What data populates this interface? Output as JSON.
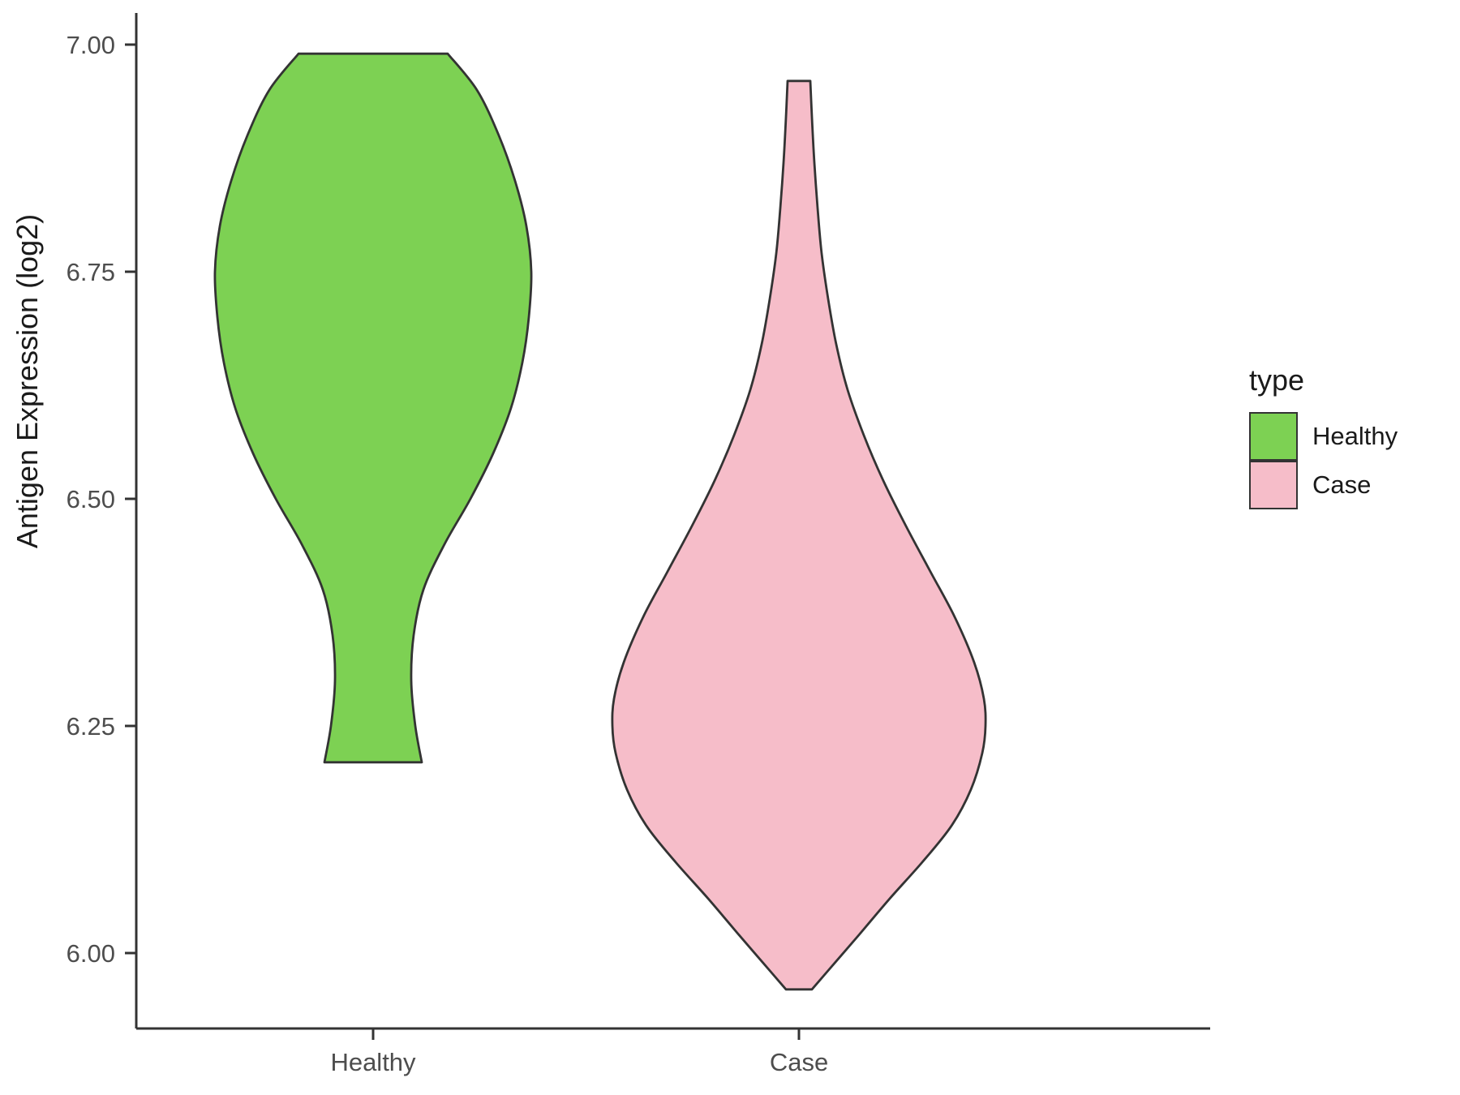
{
  "chart_data": {
    "type": "violin",
    "title": "",
    "xlabel": "",
    "ylabel": "Antigen Expression (log2)",
    "categories": [
      "Healthy",
      "Case"
    ],
    "y_ticks": [
      {
        "label": "7.00",
        "value": 7.0
      },
      {
        "label": "6.75",
        "value": 6.75
      },
      {
        "label": "6.50",
        "value": 6.5
      },
      {
        "label": "6.25",
        "value": 6.25
      },
      {
        "label": "6.00",
        "value": 6.0
      }
    ],
    "ylim": [
      5.9,
      7.02
    ],
    "grid": false,
    "legend_position": "right",
    "legend": {
      "title": "type",
      "entries": [
        {
          "label": "Healthy",
          "color": "#7DD153"
        },
        {
          "label": "Case",
          "color": "#F6BDC9"
        }
      ]
    },
    "series": [
      {
        "name": "Healthy",
        "fill": "#7DD153",
        "outline": "#333333",
        "value_range": [
          6.21,
          6.99
        ],
        "peak_density_at": 6.75,
        "density_profile": [
          [
            6.99,
            92
          ],
          [
            6.95,
            128
          ],
          [
            6.9,
            155
          ],
          [
            6.85,
            175
          ],
          [
            6.8,
            189
          ],
          [
            6.75,
            195
          ],
          [
            6.7,
            192
          ],
          [
            6.65,
            184
          ],
          [
            6.6,
            170
          ],
          [
            6.55,
            148
          ],
          [
            6.5,
            120
          ],
          [
            6.45,
            88
          ],
          [
            6.4,
            62
          ],
          [
            6.35,
            50
          ],
          [
            6.3,
            47
          ],
          [
            6.25,
            52
          ],
          [
            6.21,
            60
          ]
        ]
      },
      {
        "name": "Case",
        "fill": "#F6BDC9",
        "outline": "#333333",
        "value_range": [
          5.96,
          6.96
        ],
        "peak_density_at": 6.27,
        "density_profile": [
          [
            6.96,
            14
          ],
          [
            6.92,
            16
          ],
          [
            6.87,
            19
          ],
          [
            6.82,
            23
          ],
          [
            6.77,
            28
          ],
          [
            6.72,
            36
          ],
          [
            6.67,
            46
          ],
          [
            6.62,
            60
          ],
          [
            6.57,
            80
          ],
          [
            6.52,
            104
          ],
          [
            6.47,
            132
          ],
          [
            6.42,
            162
          ],
          [
            6.37,
            192
          ],
          [
            6.32,
            216
          ],
          [
            6.28,
            228
          ],
          [
            6.25,
            230
          ],
          [
            6.22,
            226
          ],
          [
            6.18,
            212
          ],
          [
            6.14,
            188
          ],
          [
            6.1,
            152
          ],
          [
            6.06,
            112
          ],
          [
            6.02,
            74
          ],
          [
            5.99,
            45
          ],
          [
            5.96,
            16
          ]
        ]
      }
    ]
  }
}
